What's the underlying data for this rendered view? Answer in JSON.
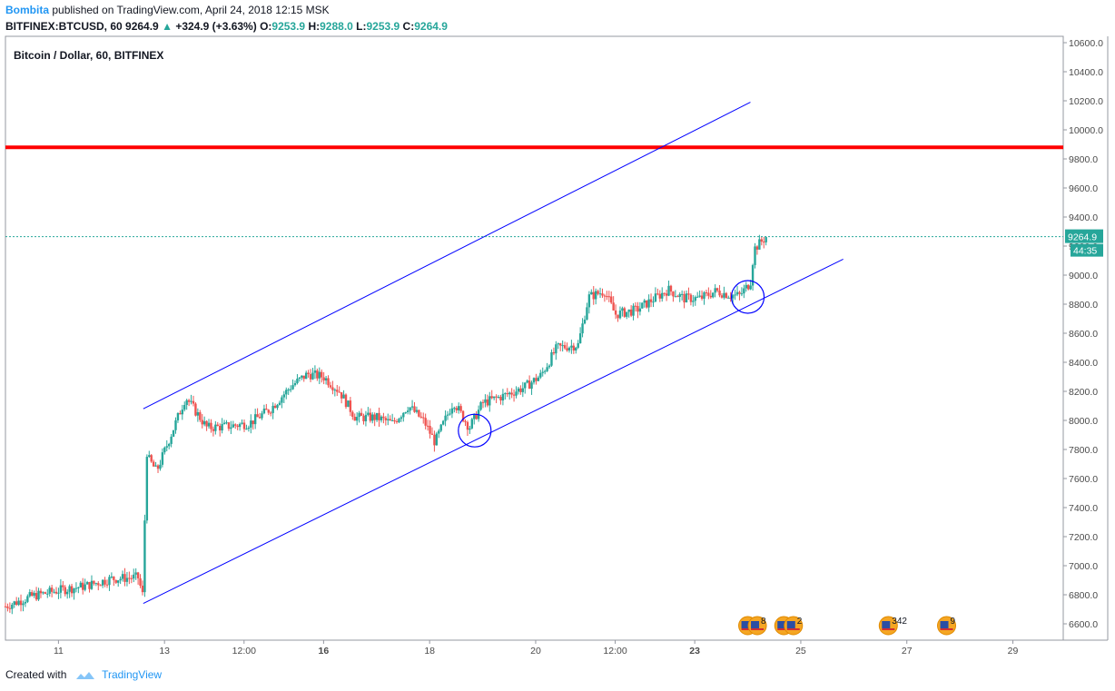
{
  "header": {
    "author": "Bombita",
    "published_text": "published on TradingView.com, April 24, 2018 12:15 MSK",
    "symbol": "BITFINEX:BTCUSD, 60",
    "last": "9264.9",
    "change": "+324.9 (+3.63%)",
    "o_label": "O:",
    "o_val": "9253.9",
    "h_label": "H:",
    "h_val": "9288.0",
    "l_label": "L:",
    "l_val": "9253.9",
    "c_label": "C:",
    "c_val": "9264.9"
  },
  "footer": {
    "created_with": "Created with",
    "brand": "TradingView"
  },
  "colors": {
    "up": "#26a69a",
    "down": "#ef5350",
    "channel": "#0000ff",
    "resistance": "#ff0000",
    "price_line": "#26a69a"
  },
  "chart_data": {
    "type": "candlestick",
    "title": "Bitcoin / Dollar, 60, BITFINEX",
    "ylim": [
      6500,
      10650
    ],
    "y_ticks": [
      "10600.0",
      "10400.0",
      "10200.0",
      "10000.0",
      "9800.0",
      "9600.0",
      "9400.0",
      "9200.0",
      "9000.0",
      "8800.0",
      "8600.0",
      "8400.0",
      "8200.0",
      "8000.0",
      "7800.0",
      "7600.0",
      "7400.0",
      "7200.0",
      "7000.0",
      "6800.0",
      "6600.0"
    ],
    "x_ticks": [
      "11",
      "13",
      "12:00",
      "16",
      "18",
      "20",
      "12:00",
      "23",
      "25",
      "27",
      "29"
    ],
    "last_price_label": "9264.9",
    "countdown_label": "44:35",
    "resistance_level": 9880,
    "channel": {
      "upper": [
        {
          "x": 12.6,
          "y": 8080
        },
        {
          "x": 24.05,
          "y": 10190
        }
      ],
      "lower": [
        {
          "x": 12.6,
          "y": 6740
        },
        {
          "x": 25.8,
          "y": 9110
        }
      ]
    },
    "highlight_circles": [
      {
        "x": 18.85,
        "y": 7930
      },
      {
        "x": 24.0,
        "y": 8850
      }
    ],
    "close_path": [
      {
        "x": 10.0,
        "y": 6720
      },
      {
        "x": 10.5,
        "y": 6790
      },
      {
        "x": 11.0,
        "y": 6830
      },
      {
        "x": 11.5,
        "y": 6860
      },
      {
        "x": 12.0,
        "y": 6910
      },
      {
        "x": 12.5,
        "y": 6920
      },
      {
        "x": 12.6,
        "y": 6780
      },
      {
        "x": 12.65,
        "y": 7760
      },
      {
        "x": 12.85,
        "y": 7650
      },
      {
        "x": 13.1,
        "y": 7880
      },
      {
        "x": 13.4,
        "y": 8160
      },
      {
        "x": 13.8,
        "y": 7950
      },
      {
        "x": 14.2,
        "y": 7960
      },
      {
        "x": 14.6,
        "y": 7980
      },
      {
        "x": 15.0,
        "y": 8080
      },
      {
        "x": 15.4,
        "y": 8240
      },
      {
        "x": 15.7,
        "y": 8320
      },
      {
        "x": 16.0,
        "y": 8300
      },
      {
        "x": 16.3,
        "y": 8200
      },
      {
        "x": 16.6,
        "y": 8020
      },
      {
        "x": 17.0,
        "y": 8020
      },
      {
        "x": 17.3,
        "y": 7980
      },
      {
        "x": 17.6,
        "y": 8100
      },
      {
        "x": 17.9,
        "y": 7990
      },
      {
        "x": 18.1,
        "y": 7850
      },
      {
        "x": 18.45,
        "y": 8130
      },
      {
        "x": 18.75,
        "y": 7950
      },
      {
        "x": 19.0,
        "y": 8120
      },
      {
        "x": 19.4,
        "y": 8170
      },
      {
        "x": 19.8,
        "y": 8230
      },
      {
        "x": 20.1,
        "y": 8310
      },
      {
        "x": 20.4,
        "y": 8500
      },
      {
        "x": 20.8,
        "y": 8520
      },
      {
        "x": 21.0,
        "y": 8850
      },
      {
        "x": 21.3,
        "y": 8890
      },
      {
        "x": 21.5,
        "y": 8730
      },
      {
        "x": 21.9,
        "y": 8760
      },
      {
        "x": 22.2,
        "y": 8830
      },
      {
        "x": 22.5,
        "y": 8900
      },
      {
        "x": 22.8,
        "y": 8840
      },
      {
        "x": 23.1,
        "y": 8840
      },
      {
        "x": 23.4,
        "y": 8890
      },
      {
        "x": 23.7,
        "y": 8860
      },
      {
        "x": 23.85,
        "y": 8860
      },
      {
        "x": 24.05,
        "y": 8950
      },
      {
        "x": 24.12,
        "y": 9180
      },
      {
        "x": 24.35,
        "y": 9265
      }
    ],
    "event_badges": [
      {
        "x": 24.0,
        "label": "4"
      },
      {
        "x": 24.18,
        "label": "8"
      },
      {
        "x": 24.68,
        "label": "5"
      },
      {
        "x": 24.86,
        "label": "2"
      },
      {
        "x": 26.65,
        "label": "342"
      },
      {
        "x": 27.75,
        "label": "9"
      }
    ]
  }
}
